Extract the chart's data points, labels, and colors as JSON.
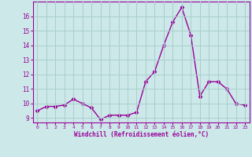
{
  "x": [
    0,
    1,
    2,
    3,
    4,
    5,
    6,
    7,
    8,
    9,
    10,
    11,
    12,
    13,
    14,
    15,
    16,
    17,
    18,
    19,
    20,
    21,
    22,
    23
  ],
  "y": [
    9.5,
    9.8,
    9.8,
    9.9,
    10.3,
    10.0,
    9.7,
    8.9,
    9.2,
    9.2,
    9.2,
    9.4,
    11.5,
    12.2,
    14.0,
    15.6,
    16.6,
    14.7,
    10.5,
    11.5,
    11.5,
    11.0,
    10.0,
    9.9
  ],
  "line_color": "#990099",
  "marker": "D",
  "markersize": 2.5,
  "linewidth": 1.0,
  "bg_color": "#cce8e8",
  "grid_color": "#aacece",
  "xlabel": "Windchill (Refroidissement éolien,°C)",
  "xlabel_color": "#990099",
  "tick_color": "#990099",
  "xlim": [
    -0.5,
    23.5
  ],
  "ylim": [
    8.7,
    17.0
  ],
  "yticks": [
    9,
    10,
    11,
    12,
    13,
    14,
    15,
    16
  ],
  "xticks": [
    0,
    1,
    2,
    3,
    4,
    5,
    6,
    7,
    8,
    9,
    10,
    11,
    12,
    13,
    14,
    15,
    16,
    17,
    18,
    19,
    20,
    21,
    22,
    23
  ],
  "figsize": [
    3.2,
    2.0
  ],
  "dpi": 100
}
